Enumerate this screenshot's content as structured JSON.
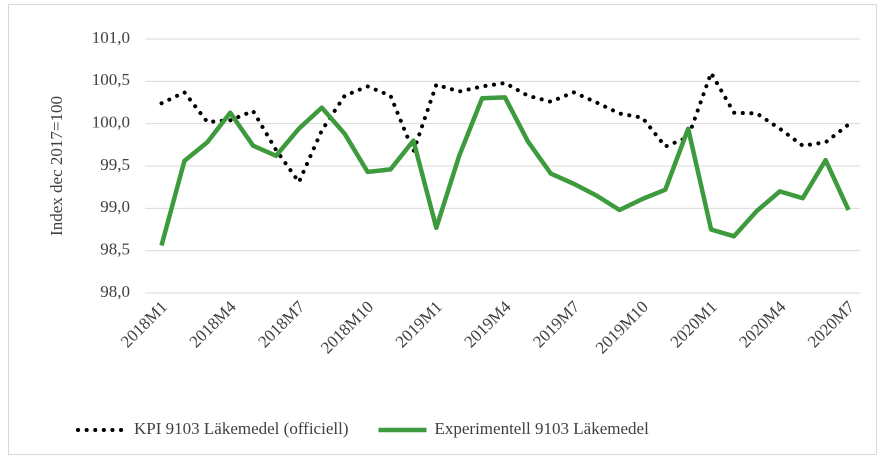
{
  "chart_data": {
    "type": "line",
    "y_label": "Index dec 2017=100",
    "categories": [
      "2018M1",
      null,
      null,
      "2018M4",
      null,
      null,
      "2018M7",
      null,
      null,
      "2018M10",
      null,
      null,
      "2019M1",
      null,
      null,
      "2019M4",
      null,
      null,
      "2019M7",
      null,
      null,
      "2019M10",
      null,
      null,
      "2020M1",
      null,
      null,
      "2020M4",
      null,
      null,
      "2020M7"
    ],
    "series": [
      {
        "name": "KPI 9103 Läkemedel (officiell)",
        "color": "#000000",
        "style": "dotted",
        "values": [
          100.24,
          100.37,
          100.02,
          100.04,
          100.15,
          99.69,
          99.31,
          99.92,
          100.33,
          100.44,
          100.33,
          99.67,
          100.46,
          100.38,
          100.44,
          100.48,
          100.33,
          100.26,
          100.37,
          100.25,
          100.12,
          100.07,
          99.73,
          99.84,
          100.6,
          100.13,
          100.12,
          99.94,
          99.74,
          99.78,
          99.99
        ]
      },
      {
        "name": "Experimentell 9103 Läkemedel",
        "color": "#3d9a3d",
        "style": "solid",
        "values": [
          98.56,
          99.56,
          99.78,
          100.13,
          99.74,
          99.62,
          99.94,
          100.19,
          99.88,
          99.43,
          99.46,
          99.8,
          98.77,
          99.62,
          100.3,
          100.31,
          99.79,
          99.41,
          99.29,
          99.15,
          98.98,
          99.11,
          99.22,
          99.94,
          98.75,
          98.67,
          98.97,
          99.2,
          99.12,
          99.57,
          98.98
        ]
      }
    ],
    "ylim": [
      98.0,
      101.0
    ],
    "yticks": [
      {
        "value": 98.0,
        "label": "98,0"
      },
      {
        "value": 98.5,
        "label": "98,5"
      },
      {
        "value": 99.0,
        "label": "99,0"
      },
      {
        "value": 99.5,
        "label": "99,5"
      },
      {
        "value": 100.0,
        "label": "100,0"
      },
      {
        "value": 100.5,
        "label": "100,5"
      },
      {
        "value": 101.0,
        "label": "101,0"
      }
    ],
    "grid": true,
    "legend": "bottom"
  }
}
